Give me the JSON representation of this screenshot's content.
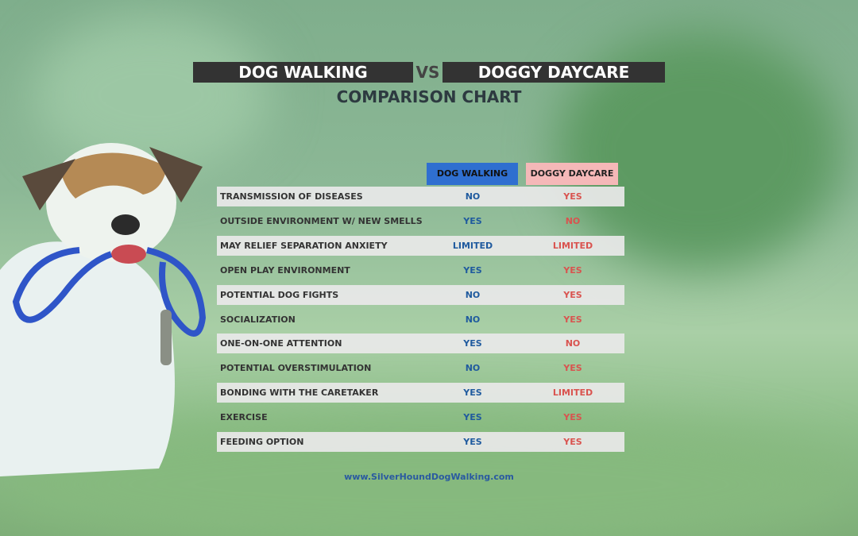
{
  "title": {
    "left": "DOG WALKING",
    "middle": "VS",
    "right": "DOGGY DAYCARE",
    "subtitle": "COMPARISON CHART"
  },
  "table": {
    "headers": [
      "DOG WALKING",
      "DOGGY DAYCARE"
    ],
    "rows": [
      [
        "TRANSMISSION OF DISEASES",
        "NO",
        "YES"
      ],
      [
        "OUTSIDE ENVIRONMENT W/ NEW SMELLS",
        "YES",
        "NO"
      ],
      [
        "MAY RELIEF SEPARATION ANXIETY",
        "LIMITED",
        "LIMITED"
      ],
      [
        "OPEN PLAY ENVIRONMENT",
        "YES",
        "YES"
      ],
      [
        "POTENTIAL DOG FIGHTS",
        "NO",
        "YES"
      ],
      [
        "SOCIALIZATION",
        "NO",
        "YES"
      ],
      [
        "ONE-ON-ONE ATTENTION",
        "YES",
        "NO"
      ],
      [
        "POTENTIAL OVERSTIMULATION",
        "NO",
        "YES"
      ],
      [
        "BONDING WITH THE CARETAKER",
        "YES",
        "LIMITED"
      ],
      [
        "EXERCISE",
        "YES",
        "YES"
      ],
      [
        "FEEDING OPTION",
        "YES",
        "YES"
      ]
    ]
  },
  "footer": "www.SilverHoundDogWalking.com"
}
